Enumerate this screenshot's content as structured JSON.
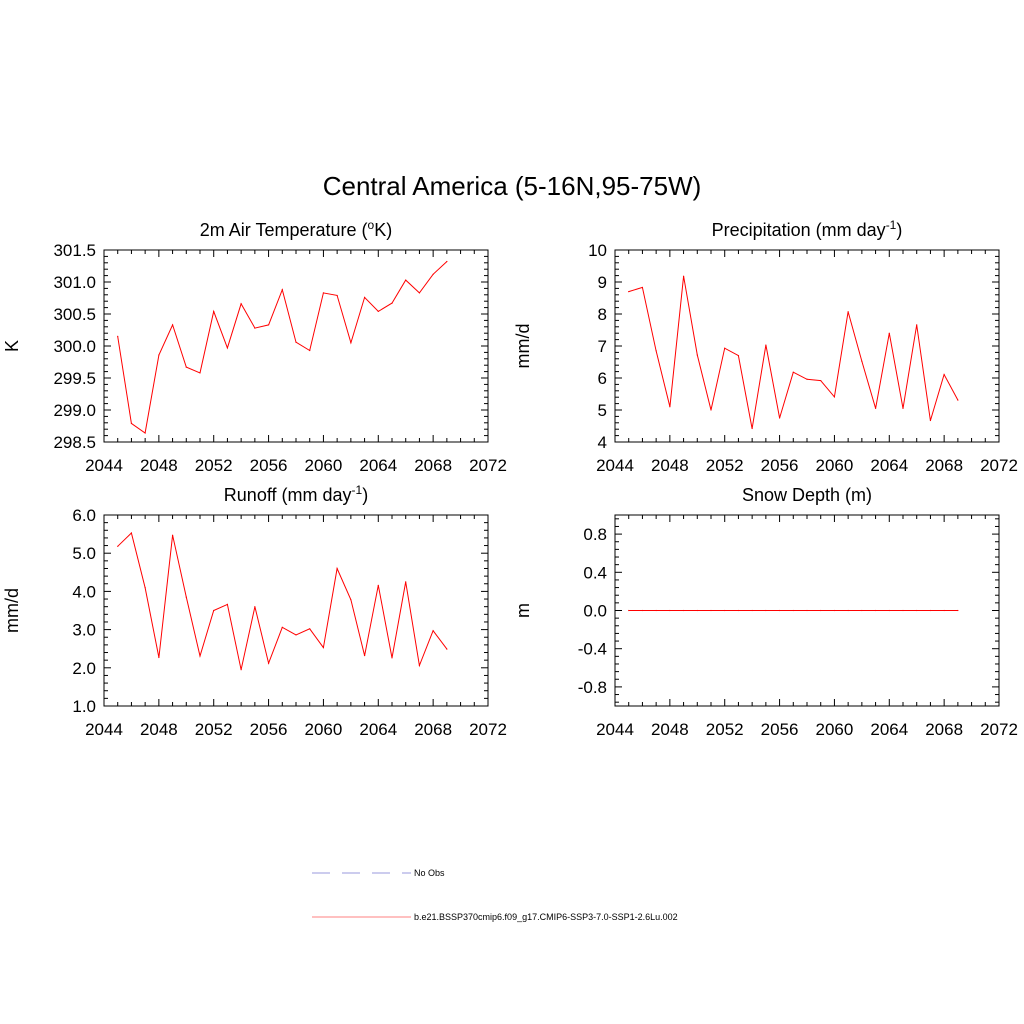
{
  "figure": {
    "title": "Central America (5-16N,95-75W)"
  },
  "colors": {
    "series": "#ff0000",
    "obs": "#9999dd",
    "model_legend": "#ff8080"
  },
  "legend": {
    "entries": [
      {
        "label": "No Obs",
        "style": "dashed",
        "color": "#9999dd"
      },
      {
        "label": "b.e21.BSSP370cmip6.f09_g17.CMIP6-SSP3-7.0-SSP1-2.6Lu.002",
        "style": "solid",
        "color": "#ff8080"
      }
    ]
  },
  "chart_data": [
    {
      "id": "temp",
      "type": "line",
      "title": "2m Air Temperature (",
      "title_sup": "o",
      "title_after": "K)",
      "title_sup2": "",
      "title_end": "",
      "ylabel": "K",
      "xlim": [
        2044,
        2072
      ],
      "ylim": [
        298.5,
        301.5
      ],
      "xticks": [
        2044,
        2048,
        2052,
        2056,
        2060,
        2064,
        2068,
        2072
      ],
      "yticks": [
        298.5,
        299.0,
        299.5,
        300.0,
        300.5,
        301.0,
        301.5
      ],
      "ytick_labels": [
        "298.5",
        "299.0",
        "299.5",
        "300.0",
        "300.5",
        "301.0",
        "301.5"
      ],
      "x": [
        2045,
        2046,
        2047,
        2048,
        2049,
        2050,
        2051,
        2052,
        2053,
        2054,
        2055,
        2056,
        2057,
        2058,
        2059,
        2060,
        2061,
        2062,
        2063,
        2064,
        2065,
        2066,
        2067,
        2068,
        2069
      ],
      "values": [
        300.15,
        298.79,
        298.64,
        299.86,
        300.33,
        299.67,
        299.58,
        300.54,
        299.97,
        300.66,
        300.28,
        300.33,
        300.88,
        300.06,
        299.93,
        300.83,
        300.79,
        300.05,
        300.76,
        300.54,
        300.67,
        301.03,
        300.83,
        301.12,
        301.32
      ]
    },
    {
      "id": "precip",
      "type": "line",
      "title": "Precipitation (mm day",
      "title_sup": "-1",
      "title_after": ")",
      "title_sup2": "",
      "title_end": "",
      "ylabel": "mm/d",
      "xlim": [
        2044,
        2072
      ],
      "ylim": [
        4,
        10
      ],
      "xticks": [
        2044,
        2048,
        2052,
        2056,
        2060,
        2064,
        2068,
        2072
      ],
      "yticks": [
        4,
        5,
        6,
        7,
        8,
        9,
        10
      ],
      "ytick_labels": [
        "4",
        "5",
        "6",
        "7",
        "8",
        "9",
        "10"
      ],
      "x": [
        2045,
        2046,
        2047,
        2048,
        2049,
        2050,
        2051,
        2052,
        2053,
        2054,
        2055,
        2056,
        2057,
        2058,
        2059,
        2060,
        2061,
        2062,
        2063,
        2064,
        2065,
        2066,
        2067,
        2068,
        2069
      ],
      "values": [
        8.7,
        8.83,
        6.85,
        5.1,
        9.18,
        6.72,
        5.0,
        6.93,
        6.7,
        4.42,
        7.03,
        4.75,
        6.18,
        5.96,
        5.92,
        5.41,
        8.07,
        6.52,
        5.05,
        7.4,
        5.05,
        7.66,
        4.67,
        6.11,
        5.31
      ]
    },
    {
      "id": "runoff",
      "type": "line",
      "title": "Runoff (mm day",
      "title_sup": "-1",
      "title_after": ")",
      "title_sup2": "",
      "title_end": "",
      "ylabel": "mm/d",
      "xlim": [
        2044,
        2072
      ],
      "ylim": [
        1.0,
        6.0
      ],
      "xticks": [
        2044,
        2048,
        2052,
        2056,
        2060,
        2064,
        2068,
        2072
      ],
      "yticks": [
        1.0,
        2.0,
        3.0,
        4.0,
        5.0,
        6.0
      ],
      "ytick_labels": [
        "1.0",
        "2.0",
        "3.0",
        "4.0",
        "5.0",
        "6.0"
      ],
      "x": [
        2045,
        2046,
        2047,
        2048,
        2049,
        2050,
        2051,
        2052,
        2053,
        2054,
        2055,
        2056,
        2057,
        2058,
        2059,
        2060,
        2061,
        2062,
        2063,
        2064,
        2065,
        2066,
        2067,
        2068,
        2069
      ],
      "values": [
        5.18,
        5.53,
        4.1,
        2.27,
        5.47,
        3.85,
        2.31,
        3.5,
        3.66,
        1.95,
        3.6,
        2.12,
        3.06,
        2.86,
        3.02,
        2.53,
        4.6,
        3.78,
        2.32,
        4.16,
        2.26,
        4.25,
        2.06,
        2.97,
        2.49
      ]
    },
    {
      "id": "snow",
      "type": "line",
      "title": "Snow Depth (m)",
      "title_sup": "",
      "title_after": "",
      "title_sup2": "",
      "title_end": "",
      "ylabel": "m",
      "xlim": [
        2044,
        2072
      ],
      "ylim": [
        -1.0,
        1.0
      ],
      "xticks": [
        2044,
        2048,
        2052,
        2056,
        2060,
        2064,
        2068,
        2072
      ],
      "yticks": [
        -0.8,
        -0.4,
        0.0,
        0.4,
        0.8
      ],
      "ytick_labels": [
        "-0.8",
        "-0.4",
        "0.0",
        "0.4",
        "0.8"
      ],
      "x": [
        2045,
        2046,
        2047,
        2048,
        2049,
        2050,
        2051,
        2052,
        2053,
        2054,
        2055,
        2056,
        2057,
        2058,
        2059,
        2060,
        2061,
        2062,
        2063,
        2064,
        2065,
        2066,
        2067,
        2068,
        2069
      ],
      "values": [
        0,
        0,
        0,
        0,
        0,
        0,
        0,
        0,
        0,
        0,
        0,
        0,
        0,
        0,
        0,
        0,
        0,
        0,
        0,
        0,
        0,
        0,
        0,
        0,
        0
      ]
    }
  ]
}
